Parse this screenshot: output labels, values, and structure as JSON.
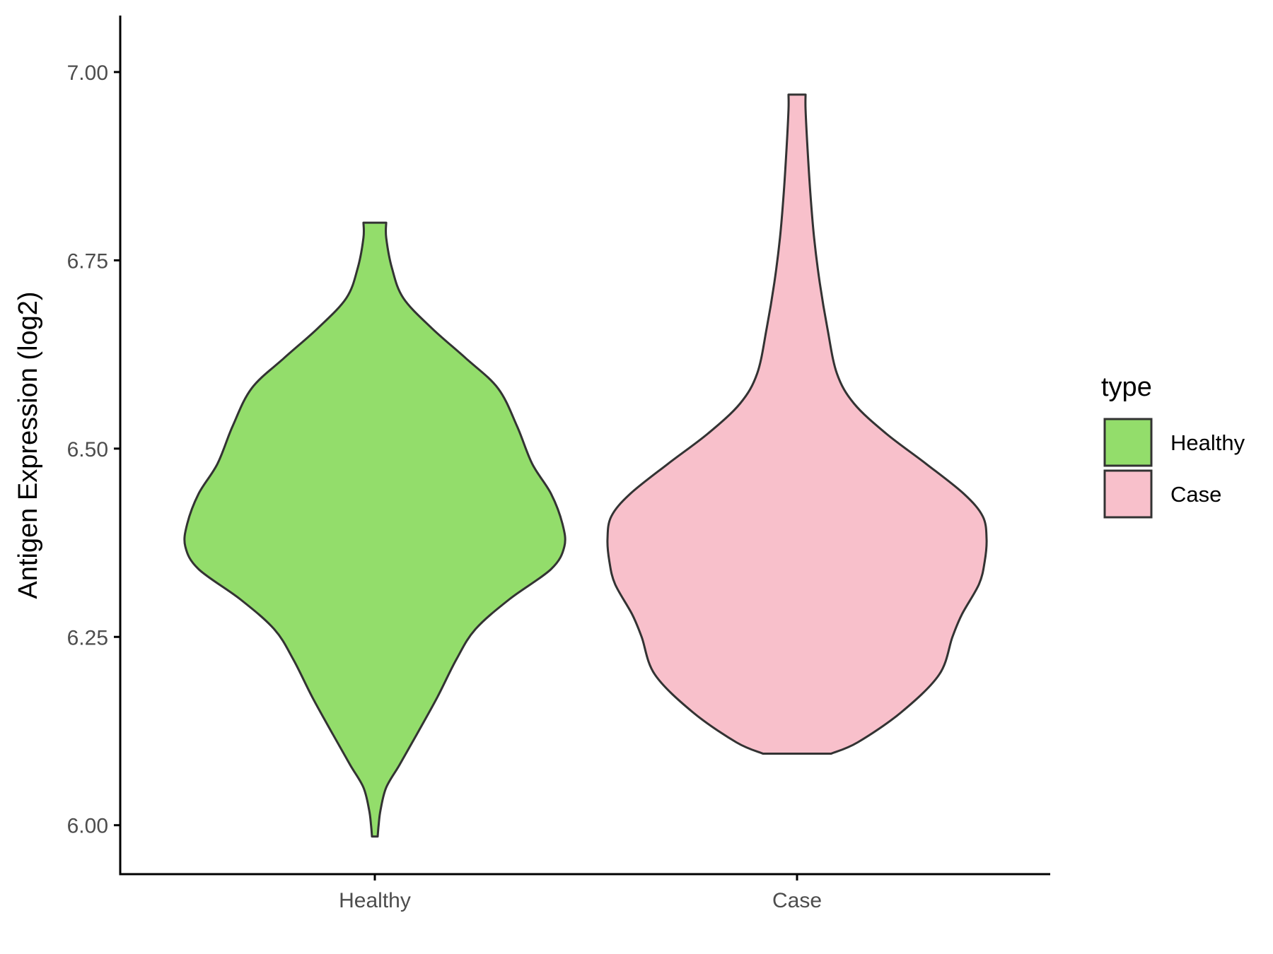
{
  "chart_data": {
    "type": "violin",
    "ylabel": "Antigen Expression (log2)",
    "xlabel": "",
    "ylim": [
      5.935,
      7.075
    ],
    "yticks": [
      6.0,
      6.25,
      6.5,
      6.75,
      7.0
    ],
    "ytick_labels": [
      "6.00",
      "6.25",
      "6.50",
      "6.75",
      "7.00"
    ],
    "categories": [
      "Healthy",
      "Case"
    ],
    "grid": false,
    "legend": {
      "title": "type",
      "position": "right",
      "entries": [
        {
          "label": "Healthy",
          "color": "#93dd6b"
        },
        {
          "label": "Case",
          "color": "#f8c0cb"
        }
      ]
    },
    "series": [
      {
        "name": "Healthy",
        "color": "#93dd6b",
        "min": 5.985,
        "max": 6.8,
        "density": [
          [
            5.985,
            0.015
          ],
          [
            6.0,
            0.02
          ],
          [
            6.02,
            0.03
          ],
          [
            6.05,
            0.06
          ],
          [
            6.08,
            0.13
          ],
          [
            6.12,
            0.22
          ],
          [
            6.17,
            0.33
          ],
          [
            6.22,
            0.43
          ],
          [
            6.26,
            0.53
          ],
          [
            6.3,
            0.71
          ],
          [
            6.34,
            0.93
          ],
          [
            6.37,
            1.0
          ],
          [
            6.4,
            0.99
          ],
          [
            6.44,
            0.93
          ],
          [
            6.48,
            0.83
          ],
          [
            6.53,
            0.75
          ],
          [
            6.58,
            0.65
          ],
          [
            6.62,
            0.48
          ],
          [
            6.66,
            0.3
          ],
          [
            6.7,
            0.15
          ],
          [
            6.74,
            0.09
          ],
          [
            6.78,
            0.06
          ],
          [
            6.8,
            0.06
          ]
        ]
      },
      {
        "name": "Case",
        "color": "#f8c0cb",
        "min": 6.095,
        "max": 6.97,
        "density": [
          [
            6.095,
            0.18
          ],
          [
            6.11,
            0.32
          ],
          [
            6.15,
            0.55
          ],
          [
            6.2,
            0.75
          ],
          [
            6.25,
            0.82
          ],
          [
            6.28,
            0.87
          ],
          [
            6.32,
            0.96
          ],
          [
            6.35,
            0.99
          ],
          [
            6.38,
            1.0
          ],
          [
            6.41,
            0.98
          ],
          [
            6.44,
            0.88
          ],
          [
            6.48,
            0.68
          ],
          [
            6.52,
            0.47
          ],
          [
            6.56,
            0.3
          ],
          [
            6.6,
            0.21
          ],
          [
            6.66,
            0.16
          ],
          [
            6.72,
            0.12
          ],
          [
            6.78,
            0.09
          ],
          [
            6.84,
            0.07
          ],
          [
            6.9,
            0.055
          ],
          [
            6.95,
            0.045
          ],
          [
            6.97,
            0.045
          ]
        ]
      }
    ]
  }
}
